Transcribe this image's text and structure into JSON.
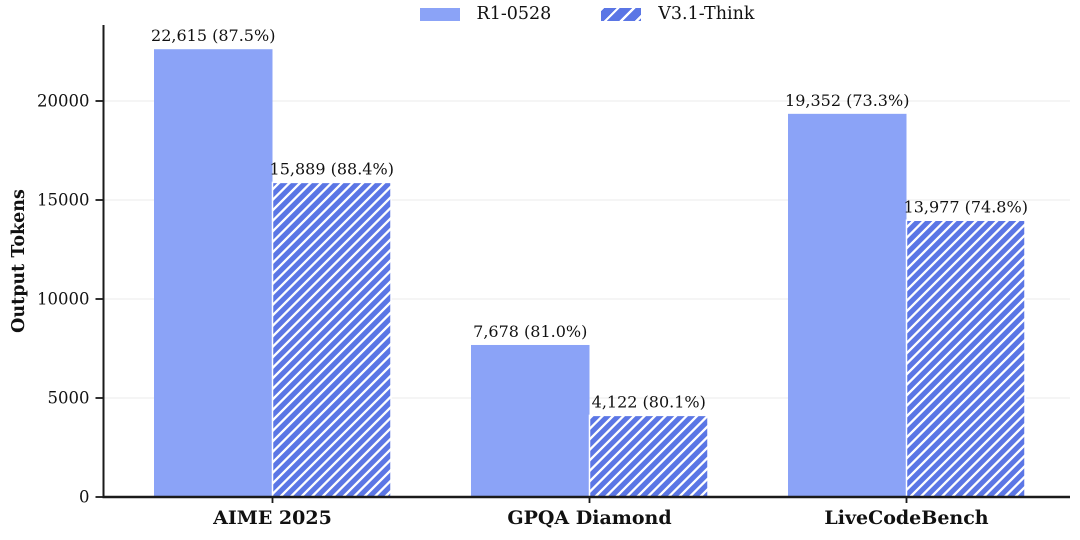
{
  "chart_data": {
    "type": "bar",
    "title": "",
    "ylabel": "Output Tokens",
    "xlabel": "",
    "categories": [
      "AIME 2025",
      "GPQA Diamond",
      "LiveCodeBench"
    ],
    "series": [
      {
        "name": "R1-0528",
        "values": [
          22615,
          7678,
          19352
        ],
        "accuracy_pct": [
          87.5,
          81.0,
          73.3
        ],
        "labels": [
          "22,615 (87.5%)",
          "7,678 (81.0%)",
          "19,352 (73.3%)"
        ],
        "color": "#8BA3F7",
        "hatch": "none"
      },
      {
        "name": "V3.1-Think",
        "values": [
          15889,
          4122,
          13977
        ],
        "accuracy_pct": [
          88.4,
          80.1,
          74.8
        ],
        "labels": [
          "15,889 (88.4%)",
          "4,122 (80.1%)",
          "13,977 (74.8%)"
        ],
        "color": "#5B76E5",
        "hatch": "white-diagonal-stripes"
      }
    ],
    "yticks": [
      0,
      5000,
      10000,
      15000,
      20000
    ],
    "ytick_labels": [
      "0",
      "5000",
      "10000",
      "15000",
      "20000"
    ],
    "ylim": [
      0,
      23800
    ],
    "grid": "horizontal",
    "grid_color": "#EFEFEF",
    "axis_color": "#1A1A1A",
    "text_color": "#111111",
    "hatch_stripe_color": "#FFFFFF",
    "background": "#FFFFFF",
    "legend_position": "top-center"
  }
}
